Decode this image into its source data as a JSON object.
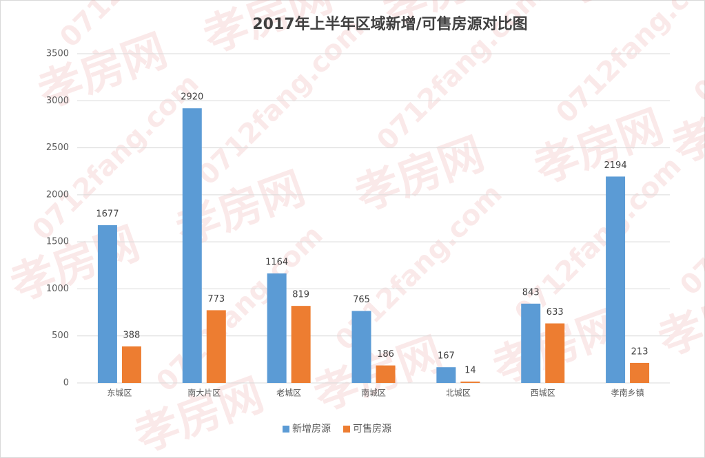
{
  "chart_data": {
    "type": "bar",
    "title": "2017年上半年区域新增/可售房源对比图",
    "categories": [
      "东城区",
      "南大片区",
      "老城区",
      "南城区",
      "北城区",
      "西城区",
      "孝南乡镇"
    ],
    "series": [
      {
        "name": "新增房源",
        "color": "#5b9bd5",
        "values": [
          1677,
          2920,
          1164,
          765,
          167,
          843,
          2194
        ]
      },
      {
        "name": "可售房源",
        "color": "#ed7d31",
        "values": [
          388,
          773,
          819,
          186,
          14,
          633,
          213
        ]
      }
    ],
    "ylim": [
      0,
      3500
    ],
    "yticks": [
      0,
      500,
      1000,
      1500,
      2000,
      2500,
      3000,
      3500
    ],
    "grid": true,
    "legend": "bottom",
    "watermark": {
      "brand": "孝房网",
      "url": "0712fang.com"
    }
  }
}
